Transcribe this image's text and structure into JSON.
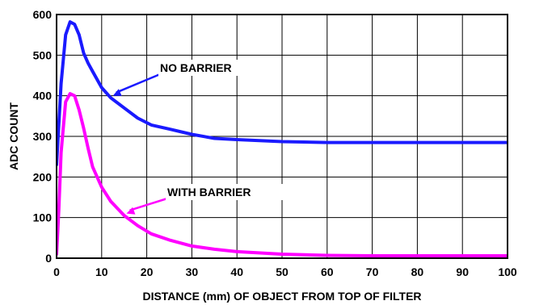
{
  "chart_data": {
    "type": "line",
    "xlabel": "DISTANCE (mm) OF OBJECT FROM TOP OF FILTER",
    "ylabel": "ADC COUNT",
    "xlim": [
      0,
      100
    ],
    "ylim": [
      0,
      600
    ],
    "xticks": [
      0,
      10,
      20,
      30,
      40,
      50,
      60,
      70,
      80,
      90,
      100
    ],
    "yticks": [
      0,
      100,
      200,
      300,
      400,
      500,
      600
    ],
    "grid": true,
    "series": [
      {
        "name": "NO BARRIER",
        "color": "#1a1aff",
        "x": [
          0,
          0.5,
          1,
          2,
          3,
          4,
          5,
          6,
          7,
          8,
          10,
          12,
          15,
          18,
          21,
          25,
          30,
          35,
          40,
          50,
          60,
          70,
          80,
          90,
          100
        ],
        "y": [
          230,
          330,
          430,
          550,
          582,
          576,
          550,
          505,
          480,
          460,
          420,
          395,
          370,
          345,
          328,
          318,
          305,
          295,
          292,
          287,
          285,
          285,
          285,
          285,
          285
        ]
      },
      {
        "name": "WITH BARRIER",
        "color": "#ff00ff",
        "x": [
          0,
          0.5,
          1,
          2,
          3,
          4,
          5,
          6,
          7,
          8,
          10,
          12,
          15,
          18,
          21,
          25,
          30,
          35,
          40,
          50,
          60,
          70,
          80,
          90,
          100
        ],
        "y": [
          10,
          120,
          260,
          385,
          405,
          400,
          365,
          320,
          270,
          225,
          175,
          140,
          105,
          80,
          60,
          45,
          30,
          22,
          16,
          10,
          7,
          6,
          6,
          6,
          6
        ]
      }
    ],
    "annotations": [
      {
        "text": "NO BARRIER",
        "series": 0,
        "point_x": 12.5,
        "point_y": 400
      },
      {
        "text": "WITH BARRIER",
        "series": 1,
        "point_x": 15.5,
        "point_y": 110
      }
    ]
  }
}
